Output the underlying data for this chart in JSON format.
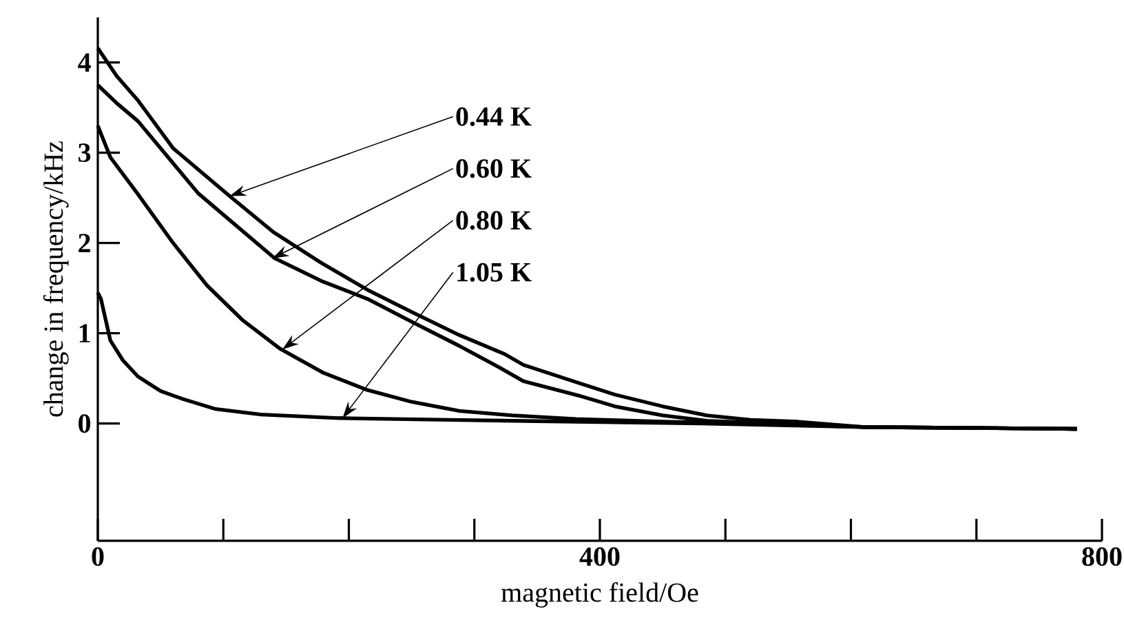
{
  "chart_data": {
    "type": "line",
    "xlabel": "magnetic field/Oe",
    "ylabel": "change in frequency/kHz",
    "xlim": [
      0,
      800
    ],
    "ylim": [
      -1.3,
      4.5
    ],
    "xticks": [
      0,
      {
        "value": 100,
        "label": null
      },
      {
        "value": 200,
        "label": null
      },
      {
        "value": 300,
        "label": null
      },
      400,
      {
        "value": 500,
        "label": null
      },
      {
        "value": 600,
        "label": null
      },
      {
        "value": 700,
        "label": null
      },
      800
    ],
    "yticks": [
      0,
      1,
      2,
      3,
      4
    ],
    "grid": false,
    "line_style": "solid",
    "series": [
      {
        "color": "#000000",
        "x": [
          0,
          15,
          32,
          60,
          105,
          140,
          178,
          215,
          251,
          288,
          324,
          339,
          383,
          412,
          450,
          485,
          520,
          558,
          611,
          700,
          780
        ],
        "values": [
          4.16,
          3.85,
          3.58,
          3.05,
          2.52,
          2.12,
          1.78,
          1.48,
          1.23,
          0.98,
          0.77,
          0.65,
          0.45,
          0.32,
          0.19,
          0.09,
          0.04,
          0.02,
          -0.04,
          -0.05,
          -0.06
        ]
      },
      {
        "color": "#000000",
        "x": [
          0,
          15,
          32,
          80,
          141,
          178,
          215,
          251,
          288,
          320,
          339,
          383,
          412,
          450,
          485,
          520,
          558,
          611,
          700,
          780
        ],
        "values": [
          3.75,
          3.55,
          3.35,
          2.55,
          1.83,
          1.58,
          1.38,
          1.12,
          0.86,
          0.62,
          0.47,
          0.31,
          0.19,
          0.09,
          0.03,
          0.01,
          0.0,
          -0.04,
          -0.05,
          -0.06
        ]
      },
      {
        "color": "#000000",
        "x": [
          0,
          10,
          32,
          60,
          87,
          115,
          145,
          180,
          215,
          250,
          288,
          330,
          381,
          450,
          520,
          611,
          700,
          780
        ],
        "values": [
          3.3,
          2.95,
          2.54,
          2.0,
          1.53,
          1.15,
          0.83,
          0.56,
          0.37,
          0.24,
          0.14,
          0.09,
          0.05,
          0.02,
          0.0,
          -0.04,
          -0.05,
          -0.06
        ]
      },
      {
        "color": "#000000",
        "x": [
          0,
          2.5,
          10,
          20,
          32,
          50,
          68,
          94,
          130,
          192,
          280,
          381,
          480,
          611,
          700,
          780
        ],
        "values": [
          1.45,
          1.38,
          0.92,
          0.7,
          0.52,
          0.36,
          0.27,
          0.16,
          0.1,
          0.06,
          0.04,
          0.02,
          0.0,
          -0.04,
          -0.05,
          -0.06
        ]
      }
    ],
    "annotations": [
      {
        "text": "0.44 K",
        "x": 105,
        "y": 2.52
      },
      {
        "text": "0.60 K",
        "x": 139,
        "y": 1.83
      },
      {
        "text": "0.80 K",
        "x": 147,
        "y": 0.82
      },
      {
        "text": "1.05 K",
        "x": 195,
        "y": 0.06
      }
    ]
  }
}
